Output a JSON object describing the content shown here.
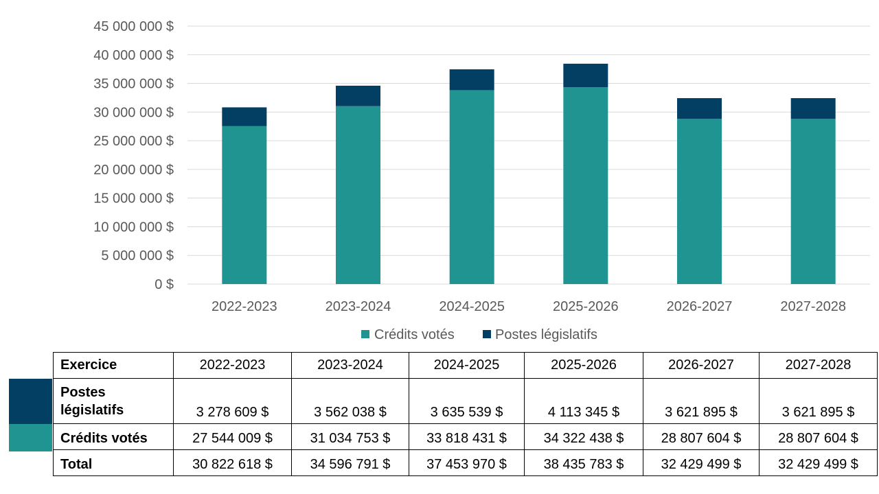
{
  "colors": {
    "credits_votes": "#1f9490",
    "postes_legislatifs": "#033e63",
    "gridline": "#d9d9d9",
    "axis_text": "#595959"
  },
  "chart_data": {
    "type": "bar",
    "stacked": true,
    "categories": [
      "2022-2023",
      "2023-2024",
      "2024-2025",
      "2025-2026",
      "2026-2027",
      "2027-2028"
    ],
    "series": [
      {
        "name": "Crédits votés",
        "values": [
          27544009,
          31034753,
          33818431,
          34322438,
          28807604,
          28807604
        ]
      },
      {
        "name": "Postes législatifs",
        "values": [
          3278609,
          3562038,
          3635539,
          4113345,
          3621895,
          3621895
        ]
      }
    ],
    "y_ticks": [
      "45 000 000 $",
      "40 000 000 $",
      "35 000 000 $",
      "30 000 000 $",
      "25 000 000 $",
      "20 000 000 $",
      "15 000 000 $",
      "10 000 000 $",
      "5 000 000 $",
      "0 $"
    ],
    "ylim": [
      0,
      45000000
    ],
    "grid": true,
    "legend_position": "bottom",
    "title": "",
    "xlabel": "",
    "ylabel": ""
  },
  "table": {
    "header_label": "Exercice",
    "years": [
      "2022-2023",
      "2023-2024",
      "2024-2025",
      "2025-2026",
      "2026-2027",
      "2027-2028"
    ],
    "rows": [
      {
        "label": "Postes législatifs",
        "values": [
          "3 278 609 $",
          "3 562 038 $",
          "3 635 539 $",
          "4 113 345 $",
          "3 621 895 $",
          "3 621 895 $"
        ]
      },
      {
        "label": "Crédits votés",
        "values": [
          "27 544 009 $",
          "31 034 753 $",
          "33 818 431 $",
          "34 322 438 $",
          "28 807 604 $",
          "28 807 604 $"
        ]
      },
      {
        "label": "Total",
        "values": [
          "30 822 618 $",
          "34 596 791 $",
          "37 453 970 $",
          "38 435 783 $",
          "32 429 499 $",
          "32 429 499 $"
        ]
      }
    ]
  }
}
